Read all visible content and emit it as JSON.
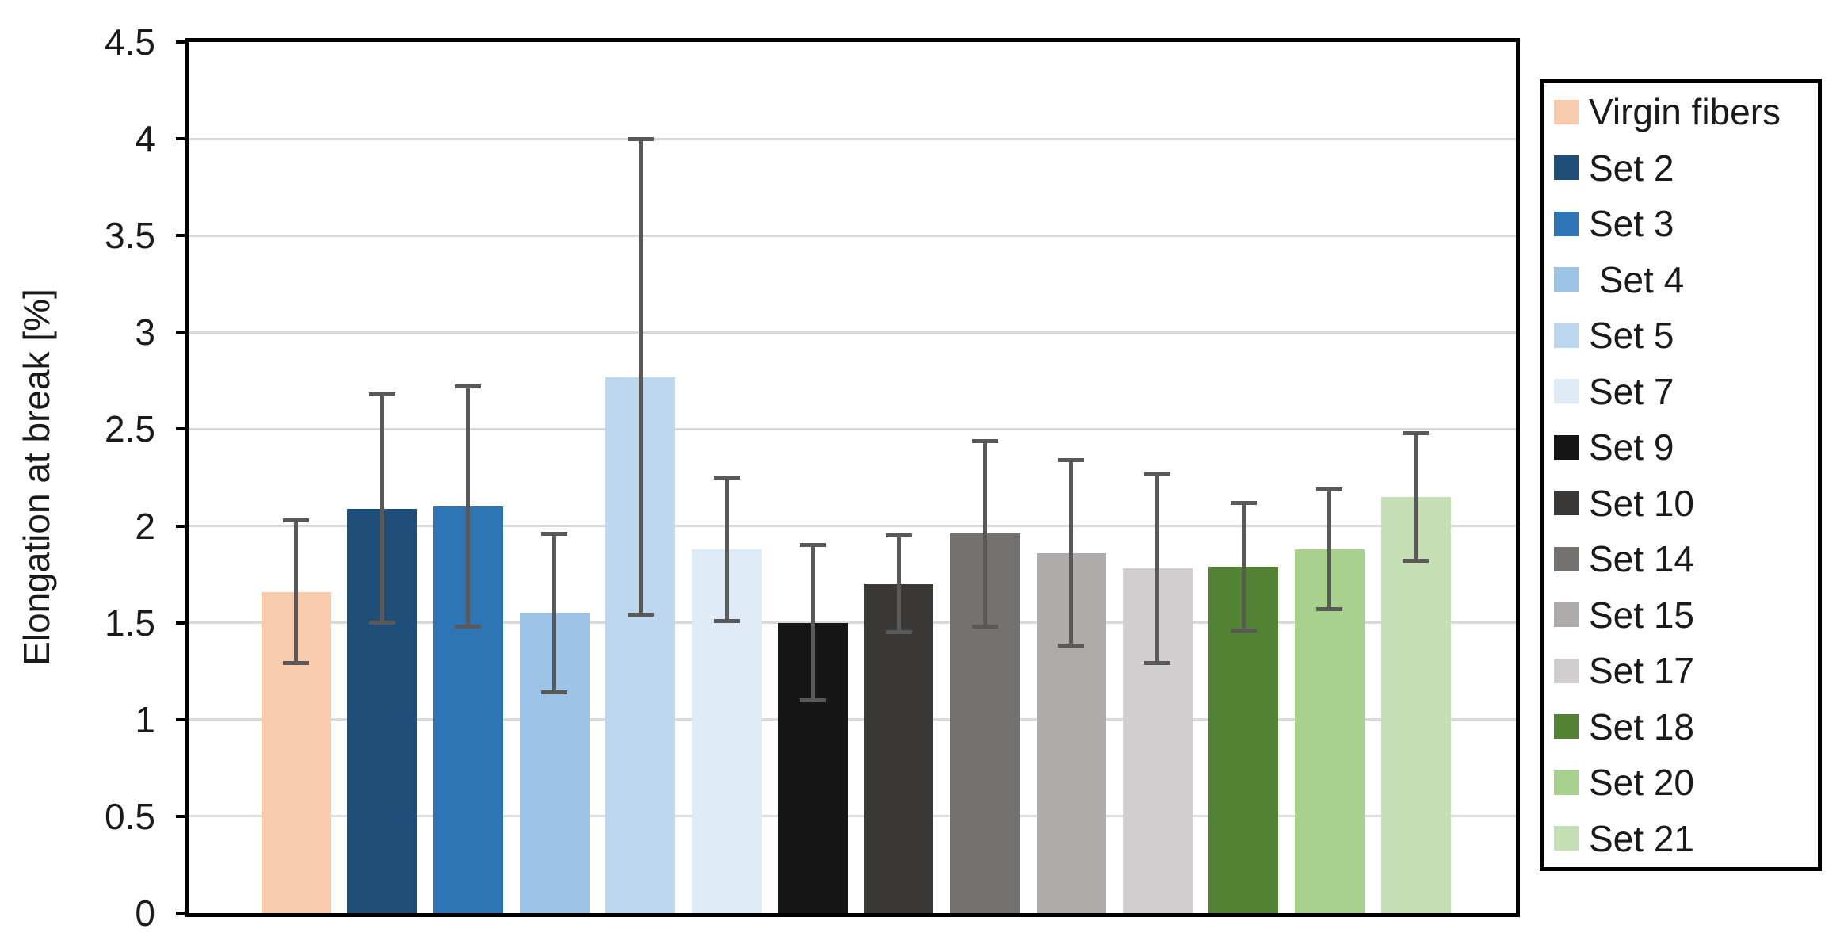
{
  "chart_data": {
    "type": "bar",
    "title": "",
    "xlabel": "",
    "ylabel": "Elongation at break [%]",
    "ylim": [
      0,
      4.5
    ],
    "ytick_labels": [
      "0",
      "0.5",
      "1",
      "1.5",
      "2",
      "2.5",
      "3",
      "3.5",
      "4",
      "4.5"
    ],
    "ytick_step": 0.5,
    "grid": true,
    "legend_position": "right-outside",
    "x_tick_labels_shown": false,
    "axis_color": "#000000",
    "gridline_color": "#D9D9D9",
    "error_bar_color": "#595959",
    "bars": [
      {
        "label": "Virgin fibers",
        "legend_label": "Virgin fibers",
        "value": 1.66,
        "error": 0.37,
        "color": "#F8CBAD"
      },
      {
        "label": "Set 2",
        "legend_label": "Set 2",
        "value": 2.09,
        "error": 0.59,
        "color": "#1F4E79"
      },
      {
        "label": "Set 3",
        "legend_label": "Set 3",
        "value": 2.1,
        "error": 0.62,
        "color": "#2E75B6"
      },
      {
        "label": "Set 4",
        "legend_label": " Set 4",
        "value": 1.55,
        "error": 0.41,
        "color": "#9DC3E6"
      },
      {
        "label": "Set 5",
        "legend_label": "Set 5",
        "value": 2.77,
        "error": 1.23,
        "color": "#BDD7EE"
      },
      {
        "label": "Set 7",
        "legend_label": "Set 7",
        "value": 1.88,
        "error": 0.37,
        "color": "#DEEBF7"
      },
      {
        "label": "Set 9",
        "legend_label": "Set 9",
        "value": 1.5,
        "error": 0.4,
        "color": "#161616"
      },
      {
        "label": "Set 10",
        "legend_label": "Set 10",
        "value": 1.7,
        "error": 0.25,
        "color": "#3B3838"
      },
      {
        "label": "Set 14",
        "legend_label": "Set 14",
        "value": 1.96,
        "error": 0.48,
        "color": "#767171"
      },
      {
        "label": "Set 15",
        "legend_label": "Set 15",
        "value": 1.86,
        "error": 0.48,
        "color": "#AFABAB"
      },
      {
        "label": "Set 17",
        "legend_label": "Set 17",
        "value": 1.78,
        "error": 0.49,
        "color": "#D0CECE"
      },
      {
        "label": "Set 18",
        "legend_label": "Set 18",
        "value": 1.79,
        "error": 0.33,
        "color": "#548235"
      },
      {
        "label": "Set 20",
        "legend_label": "Set 20",
        "value": 1.88,
        "error": 0.31,
        "color": "#A9D18E"
      },
      {
        "label": "Set 21",
        "legend_label": "Set 21",
        "value": 2.15,
        "error": 0.33,
        "color": "#C5E0B4"
      }
    ]
  }
}
